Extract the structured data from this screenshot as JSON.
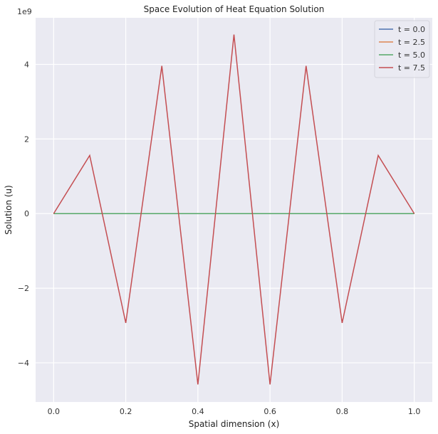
{
  "chart_data": {
    "type": "line",
    "title": "Space Evolution of Heat Equation Solution",
    "xlabel": "Spatial dimension (x)",
    "ylabel": "Solution (u)",
    "y_offset_text": "1e9",
    "y_scale": 1000000000,
    "xlim": [
      -0.05,
      1.05
    ],
    "ylim": [
      -5.05,
      5.25
    ],
    "x_ticks": [
      0.0,
      0.2,
      0.4,
      0.6,
      0.8,
      1.0
    ],
    "x_tick_labels": [
      "0.0",
      "0.2",
      "0.4",
      "0.6",
      "0.8",
      "1.0"
    ],
    "y_ticks": [
      -4,
      -2,
      0,
      2,
      4
    ],
    "y_tick_labels": [
      "−4",
      "−2",
      "0",
      "2",
      "4"
    ],
    "grid": true,
    "legend_position": "top-right",
    "x": [
      0.0,
      0.1,
      0.2,
      0.3,
      0.4,
      0.5,
      0.6,
      0.7,
      0.8,
      0.9,
      1.0
    ],
    "series": [
      {
        "name": "t = 0.0",
        "color": "#4c72b0",
        "values": [
          0,
          0,
          0,
          0,
          0,
          0,
          0,
          0,
          0,
          0,
          0
        ]
      },
      {
        "name": "t = 2.5",
        "color": "#dd8452",
        "values": [
          0,
          0,
          0,
          0,
          0,
          0,
          0,
          0,
          0,
          0,
          0
        ]
      },
      {
        "name": "t = 5.0",
        "color": "#55a868",
        "values": [
          0,
          0,
          0,
          0,
          0,
          0,
          0,
          0,
          0,
          0,
          0
        ]
      },
      {
        "name": "t = 7.5",
        "color": "#c44e52",
        "values": [
          0,
          1.56,
          -2.93,
          3.96,
          -4.58,
          4.8,
          -4.58,
          3.96,
          -2.93,
          1.56,
          0
        ]
      }
    ]
  }
}
